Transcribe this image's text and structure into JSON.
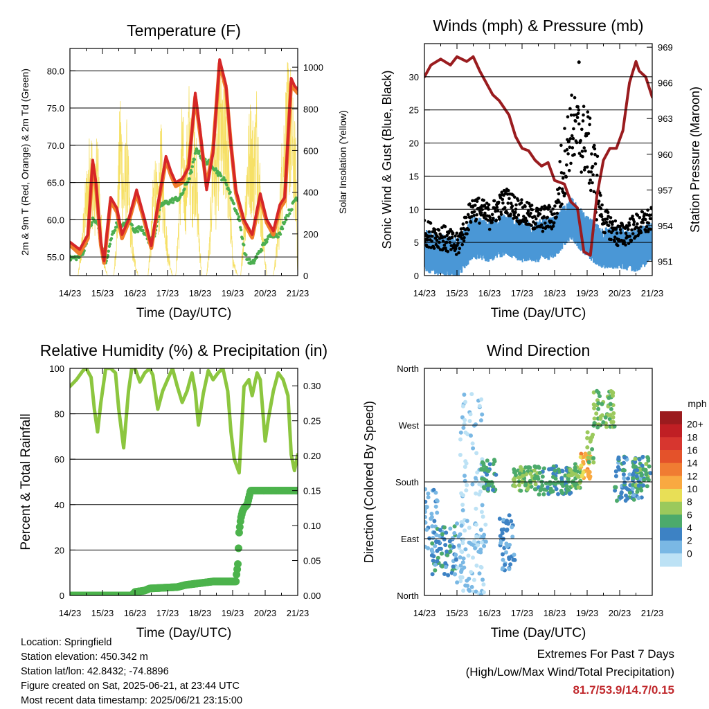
{
  "x_ticks": [
    "14/23",
    "15/23",
    "16/23",
    "17/23",
    "18/23",
    "19/23",
    "20/23",
    "21/23"
  ],
  "colors": {
    "temp_2m": "#d62728",
    "temp_9m": "#f07d2a",
    "dewpoint": "#4caf50",
    "solar": "#f5dd55",
    "wind": "#4a97d6",
    "gust": "#000000",
    "pressure": "#9a1c1f",
    "rh": "#8cc63f",
    "precip": "#4cb34c",
    "extremes": "#c0282c"
  },
  "chart_data": [
    {
      "id": "temperature",
      "type": "line",
      "title": "Temperature (F)",
      "xlabel": "Time (Day/UTC)",
      "ylabel": "2m & 9m T (Red, Orange) & 2m Td (Green)",
      "y2label": "Solar Insolation (Yellow)",
      "xlim": [
        0,
        7
      ],
      "ylim": [
        52.5,
        83
      ],
      "y2lim": [
        0,
        1090
      ],
      "yticks": [
        55,
        60,
        65,
        70,
        75,
        80
      ],
      "ytick_labels": [
        "55.0",
        "60.0",
        "65.0",
        "70.0",
        "75.0",
        "80.0"
      ],
      "y2ticks": [
        0,
        200,
        400,
        600,
        800,
        1000
      ],
      "series": [
        {
          "key": "t2m",
          "x": [
            0,
            0.3,
            0.55,
            0.7,
            0.8,
            0.95,
            1.05,
            1.25,
            1.45,
            1.6,
            1.8,
            2.05,
            2.3,
            2.5,
            2.7,
            2.95,
            3.1,
            3.25,
            3.45,
            3.65,
            3.85,
            4.0,
            4.2,
            4.4,
            4.6,
            4.8,
            4.95,
            5.1,
            5.35,
            5.6,
            5.85,
            6.05,
            6.25,
            6.45,
            6.6,
            6.8,
            6.9,
            7.0
          ],
          "y": [
            57,
            56,
            58,
            68,
            65,
            57,
            54.5,
            63,
            61.5,
            58,
            60,
            64,
            60,
            56.5,
            62,
            68.5,
            66.5,
            65,
            65.5,
            67,
            77,
            72,
            64,
            69,
            81.5,
            78,
            70,
            64,
            60,
            58,
            63.5,
            60,
            58.5,
            62,
            63,
            79,
            78,
            77.5
          ]
        },
        {
          "key": "t9m",
          "x": [
            0,
            0.3,
            0.55,
            0.7,
            0.8,
            0.95,
            1.05,
            1.25,
            1.45,
            1.6,
            1.8,
            2.05,
            2.3,
            2.5,
            2.7,
            2.95,
            3.1,
            3.25,
            3.45,
            3.65,
            3.85,
            4.0,
            4.2,
            4.4,
            4.6,
            4.8,
            4.95,
            5.1,
            5.35,
            5.6,
            5.85,
            6.05,
            6.25,
            6.45,
            6.6,
            6.8,
            6.9,
            7.0
          ],
          "y": [
            56.6,
            55.4,
            57.5,
            67.5,
            64.5,
            56.6,
            54.2,
            62.5,
            61,
            57.5,
            59.6,
            63.5,
            59.6,
            56.2,
            61.5,
            68,
            66,
            64.5,
            65,
            67.4,
            76.5,
            71.5,
            64.5,
            69.5,
            81,
            77.5,
            70,
            63.6,
            59.6,
            57.6,
            63,
            59.6,
            58,
            61.5,
            62.5,
            78.5,
            77.5,
            77
          ]
        },
        {
          "key": "td",
          "x": [
            0,
            0.3,
            0.45,
            0.55,
            0.7,
            0.85,
            1.0,
            1.1,
            1.3,
            1.45,
            1.6,
            1.8,
            2.0,
            2.2,
            2.45,
            2.6,
            2.8,
            3.1,
            3.4,
            3.7,
            3.9,
            4.1,
            4.35,
            4.6,
            4.8,
            5.0,
            5.2,
            5.4,
            5.6,
            5.8,
            6.0,
            6.2,
            6.45,
            6.6,
            6.8,
            6.95,
            7.0
          ],
          "y": [
            54.8,
            55,
            56,
            58,
            60,
            59.5,
            56,
            54,
            58,
            59.5,
            59,
            60,
            58.5,
            59,
            57,
            58,
            62,
            62.5,
            63,
            66,
            69.5,
            68,
            67.5,
            66,
            65,
            62.5,
            60,
            55,
            54,
            55.5,
            57,
            58,
            58,
            60,
            61.5,
            63,
            62.5
          ]
        },
        {
          "key": "solar",
          "x": [
            0,
            0.25,
            0.35,
            0.45,
            0.55,
            0.65,
            0.75,
            0.85,
            0.95,
            1.05,
            1.15,
            1.35,
            1.45,
            1.55,
            1.65,
            1.75,
            1.85,
            1.95,
            2.1,
            2.4,
            2.5,
            2.6,
            2.7,
            2.8,
            2.9,
            3.0,
            3.15,
            3.25,
            3.35,
            3.45,
            3.55,
            3.65,
            3.75,
            3.85,
            3.95,
            4.05,
            4.2,
            4.3,
            4.4,
            4.5,
            4.6,
            4.7,
            4.8,
            4.9,
            5.0,
            5.15,
            5.25,
            5.35,
            5.45,
            5.55,
            5.65,
            5.75,
            5.85,
            5.95,
            6.05,
            6.25,
            6.35,
            6.45,
            6.55,
            6.65,
            6.75,
            6.85,
            6.95,
            7.0
          ],
          "y": [
            0,
            0,
            150,
            380,
            560,
            700,
            500,
            650,
            300,
            80,
            0,
            0,
            300,
            880,
            520,
            700,
            350,
            120,
            0,
            0,
            250,
            600,
            400,
            700,
            450,
            150,
            0,
            0,
            350,
            800,
            500,
            900,
            600,
            800,
            300,
            0,
            0,
            200,
            750,
            600,
            1000,
            800,
            950,
            500,
            100,
            0,
            0,
            300,
            650,
            800,
            700,
            900,
            500,
            200,
            0,
            0,
            150,
            400,
            750,
            900,
            1000,
            800,
            600,
            0
          ]
        }
      ]
    },
    {
      "id": "winds",
      "type": "scatter",
      "title": "Winds (mph) & Pressure (mb)",
      "xlabel": "Time (Day/UTC)",
      "ylabel": "Sonic Wind & Gust (Blue, Black)",
      "y2label": "Station Pressure (Maroon)",
      "xlim": [
        0,
        7
      ],
      "ylim": [
        0,
        35
      ],
      "y2lim": [
        949.8,
        969.3
      ],
      "yticks": [
        0,
        5,
        10,
        15,
        20,
        25,
        30
      ],
      "y2ticks": [
        951,
        954,
        957,
        960,
        963,
        966,
        969
      ],
      "wind_level": [
        [
          0,
          3.5
        ],
        [
          0.5,
          3
        ],
        [
          1.0,
          2.5
        ],
        [
          1.5,
          5.5
        ],
        [
          2.0,
          5
        ],
        [
          2.5,
          6
        ],
        [
          3.0,
          5
        ],
        [
          3.5,
          5
        ],
        [
          4.0,
          5.5
        ],
        [
          4.5,
          8.5
        ],
        [
          5.0,
          5.5
        ],
        [
          5.5,
          4
        ],
        [
          6.0,
          4
        ],
        [
          6.5,
          3.5
        ],
        [
          7.0,
          5
        ]
      ],
      "gust_level": [
        [
          0,
          6
        ],
        [
          0.5,
          5.5
        ],
        [
          1.0,
          4
        ],
        [
          1.5,
          10
        ],
        [
          2.0,
          8.5
        ],
        [
          2.5,
          11
        ],
        [
          3.0,
          9
        ],
        [
          3.5,
          8
        ],
        [
          4.0,
          8.5
        ],
        [
          4.5,
          21
        ],
        [
          5.0,
          19
        ],
        [
          5.5,
          8
        ],
        [
          6.0,
          5.5
        ],
        [
          6.5,
          7
        ],
        [
          7.0,
          8
        ]
      ],
      "gust_max": 32.2,
      "pressure": {
        "x": [
          0,
          0.2,
          0.5,
          0.8,
          1.0,
          1.3,
          1.5,
          1.7,
          1.9,
          2.1,
          2.3,
          2.6,
          2.8,
          3.0,
          3.2,
          3.4,
          3.6,
          3.8,
          4.0,
          4.3,
          4.5,
          4.7,
          4.9,
          5.1,
          5.3,
          5.5,
          5.7,
          5.9,
          6.1,
          6.3,
          6.5,
          6.6,
          6.8,
          7.0
        ],
        "y": [
          966.5,
          967.5,
          968,
          967.5,
          968.2,
          967.8,
          968.2,
          967,
          966,
          965,
          964.5,
          963.3,
          961.5,
          960.5,
          960.3,
          959.5,
          959,
          959.3,
          957.8,
          957.5,
          956,
          955.5,
          951.8,
          951.5,
          956.5,
          959.5,
          960.5,
          960.5,
          962,
          966,
          967.8,
          967,
          966.5,
          964.8
        ]
      }
    },
    {
      "id": "humidity",
      "type": "line",
      "title": "Relative Humidity (%) & Precipitation (in)",
      "xlabel": "Time (Day/UTC)",
      "ylabel": "Percent & Total Rainfall",
      "xlim": [
        0,
        7
      ],
      "ylim": [
        0,
        100
      ],
      "y2lim": [
        0,
        0.325
      ],
      "yticks": [
        0,
        20,
        40,
        60,
        80,
        100
      ],
      "y2ticks": [
        0,
        0.05,
        0.1,
        0.15,
        0.2,
        0.25,
        0.3
      ],
      "y2tick_labels": [
        "0.00",
        "0.05",
        "0.10",
        "0.15",
        "0.20",
        "0.25",
        "0.30"
      ],
      "series": [
        {
          "key": "rh",
          "x": [
            0,
            0.2,
            0.4,
            0.5,
            0.65,
            0.75,
            0.85,
            0.95,
            1.1,
            1.25,
            1.4,
            1.5,
            1.65,
            1.8,
            1.9,
            2.0,
            2.15,
            2.3,
            2.45,
            2.55,
            2.7,
            2.85,
            3.0,
            3.15,
            3.3,
            3.45,
            3.6,
            3.75,
            3.85,
            3.95,
            4.1,
            4.25,
            4.4,
            4.55,
            4.7,
            4.85,
            4.95,
            5.05,
            5.2,
            5.35,
            5.5,
            5.6,
            5.75,
            5.85,
            6.0,
            6.1,
            6.25,
            6.4,
            6.55,
            6.7,
            6.8,
            6.9,
            7.0
          ],
          "y": [
            92,
            95,
            99,
            100,
            96,
            82,
            72,
            85,
            100,
            100,
            98,
            82,
            65,
            90,
            100,
            100,
            94,
            98,
            100,
            97,
            82,
            90,
            95,
            100,
            92,
            85,
            90,
            98,
            90,
            75,
            89,
            99,
            95,
            98,
            100,
            90,
            72,
            60,
            54,
            92,
            95,
            88,
            98,
            95,
            68,
            78,
            90,
            98,
            95,
            88,
            62,
            55,
            62
          ]
        },
        {
          "key": "precip",
          "x": [
            0,
            1.5,
            1.9,
            2.0,
            2.3,
            2.45,
            3.3,
            3.55,
            4.4,
            5.1,
            5.12,
            5.16,
            5.2,
            5.25,
            5.3,
            5.35,
            5.45,
            5.55,
            5.6,
            7.0
          ],
          "y": [
            0,
            0,
            0.0,
            0.005,
            0.007,
            0.01,
            0.012,
            0.015,
            0.02,
            0.02,
            0.03,
            0.045,
            0.09,
            0.11,
            0.12,
            0.125,
            0.13,
            0.15,
            0.15,
            0.15
          ]
        }
      ]
    },
    {
      "id": "direction",
      "type": "scatter",
      "title": "Wind Direction",
      "xlabel": "Time (Day/UTC)",
      "ylabel": "Direction (Colored By Speed)",
      "xlim": [
        0,
        7
      ],
      "ylim": [
        0,
        360
      ],
      "yticks": [
        0,
        90,
        180,
        270,
        360
      ],
      "ytick_labels": [
        "North",
        "East",
        "South",
        "West",
        "North"
      ],
      "colorbar": {
        "unit": "mph",
        "labels": [
          "20+",
          "18",
          "16",
          "14",
          "12",
          "10",
          "8",
          "6",
          "4",
          "2",
          "0"
        ],
        "colors": [
          "#9b1b1e",
          "#c01f24",
          "#d7362f",
          "#e4522a",
          "#f07c32",
          "#f9a941",
          "#e8df56",
          "#9bc95c",
          "#4caa6b",
          "#3d82c4",
          "#7ab8e4",
          "#bde2f5"
        ]
      },
      "clusters": [
        {
          "x": [
            0,
            0.4
          ],
          "dir": [
            60,
            170
          ],
          "speed": [
            1,
            4
          ]
        },
        {
          "x": [
            0.2,
            1.0
          ],
          "dir": [
            30,
            110
          ],
          "speed": [
            2,
            6
          ]
        },
        {
          "x": [
            1.0,
            1.9
          ],
          "dir": [
            0,
            120
          ],
          "speed": [
            0,
            3
          ]
        },
        {
          "x": [
            1.1,
            1.8
          ],
          "dir": [
            110,
            320
          ],
          "speed": [
            0,
            2
          ]
        },
        {
          "x": [
            1.75,
            2.2
          ],
          "dir": [
            165,
            215
          ],
          "speed": [
            4,
            7
          ]
        },
        {
          "x": [
            2.3,
            2.8
          ],
          "dir": [
            40,
            130
          ],
          "speed": [
            2,
            5
          ]
        },
        {
          "x": [
            2.7,
            3.5
          ],
          "dir": [
            165,
            205
          ],
          "speed": [
            5,
            9
          ]
        },
        {
          "x": [
            3.5,
            4.5
          ],
          "dir": [
            160,
            205
          ],
          "speed": [
            3,
            7
          ]
        },
        {
          "x": [
            4.4,
            4.8
          ],
          "dir": [
            170,
            210
          ],
          "speed": [
            5,
            9
          ]
        },
        {
          "x": [
            4.8,
            5.1
          ],
          "dir": [
            185,
            225
          ],
          "speed": [
            10,
            14
          ]
        },
        {
          "x": [
            5.0,
            5.2
          ],
          "dir": [
            210,
            260
          ],
          "speed": [
            6,
            9
          ]
        },
        {
          "x": [
            5.2,
            5.85
          ],
          "dir": [
            265,
            325
          ],
          "speed": [
            5,
            9
          ]
        },
        {
          "x": [
            5.85,
            6.7
          ],
          "dir": [
            150,
            220
          ],
          "speed": [
            2,
            6
          ]
        },
        {
          "x": [
            6.4,
            6.95
          ],
          "dir": [
            170,
            220
          ],
          "speed": [
            4,
            8
          ]
        }
      ]
    }
  ],
  "info": {
    "location": "Location: Springfield",
    "elevation": "Station elevation: 450.342 m",
    "latlon": "Station lat/lon: 42.8432; -74.8896",
    "created": "Figure created on Sat, 2025-06-21, at 23:44 UTC",
    "recent": "Most recent data timestamp: 2025/06/21 23:15:00"
  },
  "extremes": {
    "line1": "Extremes For Past 7 Days",
    "line2": "(High/Low/Max Wind/Total Precipitation)",
    "values": "81.7/53.9/14.7/0.15"
  }
}
